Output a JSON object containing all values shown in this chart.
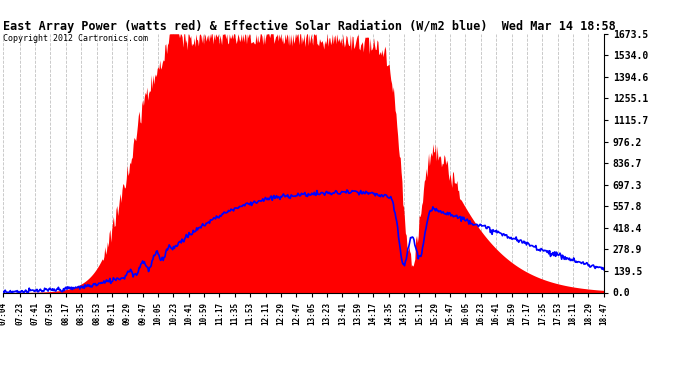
{
  "title": "East Array Power (watts red) & Effective Solar Radiation (W/m2 blue)  Wed Mar 14 18:58",
  "copyright": "Copyright 2012 Cartronics.com",
  "ylabel_right_ticks": [
    0.0,
    139.5,
    278.9,
    418.4,
    557.8,
    697.3,
    836.7,
    976.2,
    1115.7,
    1255.1,
    1394.6,
    1534.0,
    1673.5
  ],
  "xlabels": [
    "07:04",
    "07:23",
    "07:41",
    "07:59",
    "08:17",
    "08:35",
    "08:53",
    "09:11",
    "09:29",
    "09:47",
    "10:05",
    "10:23",
    "10:41",
    "10:59",
    "11:17",
    "11:35",
    "11:53",
    "12:11",
    "12:29",
    "12:47",
    "13:05",
    "13:23",
    "13:41",
    "13:59",
    "14:17",
    "14:35",
    "14:53",
    "15:11",
    "15:29",
    "15:47",
    "16:05",
    "16:23",
    "16:41",
    "16:59",
    "17:17",
    "17:35",
    "17:53",
    "18:11",
    "18:29",
    "18:47"
  ],
  "ymax": 1673.5,
  "ymin": 0.0,
  "background_color": "#ffffff",
  "grid_color": "#bbbbbb",
  "red_fill_color": "#ff0000",
  "blue_line_color": "#0000ff"
}
